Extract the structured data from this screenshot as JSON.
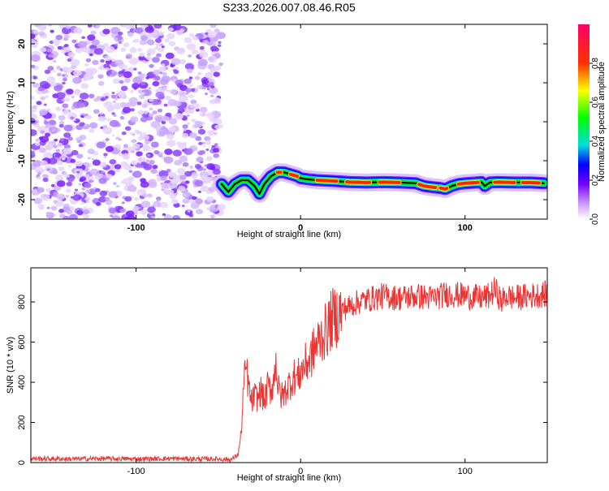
{
  "title": "S233.2026.007.08.46.R05",
  "chart_data": [
    {
      "type": "heatmap",
      "xlabel": "Height of straight line (km)",
      "ylabel": "Frequency (Hz)",
      "xlim": [
        -164,
        150
      ],
      "ylim": [
        -25,
        25
      ],
      "xticks": [
        -100,
        0,
        100
      ],
      "yticks": [
        -20,
        -10,
        0,
        10,
        20
      ],
      "noise_region_x": [
        -164,
        -48
      ],
      "ridge": {
        "x": [
          -48,
          -44,
          -40,
          -36,
          -32,
          -28,
          -25,
          -22,
          -18,
          -14,
          -10,
          -6,
          -2,
          0,
          5,
          10,
          20,
          30,
          40,
          50,
          60,
          70,
          75,
          80,
          85,
          88,
          92,
          96,
          100,
          110,
          112,
          115,
          120,
          130,
          140,
          148
        ],
        "frequency": [
          -16,
          -18,
          -16,
          -15,
          -15,
          -16.5,
          -18.5,
          -16,
          -14,
          -13,
          -13,
          -13.5,
          -14,
          -14.5,
          -14.8,
          -15,
          -15.2,
          -15.5,
          -15.6,
          -15.5,
          -15.6,
          -15.8,
          -16.5,
          -16.8,
          -17,
          -17.3,
          -16.5,
          -16,
          -15.8,
          -15.5,
          -16.5,
          -15.6,
          -15.5,
          -15.6,
          -15.6,
          -15.8
        ]
      },
      "colorbar": {
        "label": "Normalized spectral amplitude",
        "range": [
          0,
          1
        ],
        "ticks": [
          0.0,
          0.2,
          0.4,
          0.6,
          0.8
        ],
        "tick_labels": [
          "0.0",
          "0.2",
          "0.4",
          "0.6",
          "0.8"
        ],
        "colors": [
          "#ffffff",
          "#7700ff",
          "#0000ff",
          "#00dddd",
          "#00ff00",
          "#ffff00",
          "#ff0000",
          "#ff0066"
        ]
      },
      "noise_color": "#8833ff"
    },
    {
      "type": "line",
      "xlabel": "Height of straight line (km)",
      "ylabel": "SNR (10 * v/v)",
      "xlim": [
        -164,
        150
      ],
      "ylim": [
        0,
        970
      ],
      "xticks": [
        -100,
        0,
        100
      ],
      "yticks": [
        0,
        200,
        400,
        600,
        800
      ],
      "line_color": "#ee3333",
      "series": [
        {
          "x": [
            -164,
            -140,
            -120,
            -100,
            -80,
            -60,
            -50,
            -42,
            -38,
            -36,
            -35,
            -34,
            -33,
            -32,
            -30,
            -28,
            -26,
            -24,
            -22,
            -20,
            -18,
            -16,
            -15,
            -14,
            -12,
            -10,
            -8,
            -6,
            -4,
            -2,
            0,
            2,
            4,
            6,
            8,
            10,
            12,
            14,
            16,
            18,
            20,
            22,
            25,
            30,
            35,
            40,
            50,
            60,
            70,
            80,
            90,
            100,
            110,
            115,
            118,
            120,
            122,
            125,
            130,
            140,
            150
          ],
          "values": [
            20,
            18,
            20,
            18,
            20,
            18,
            18,
            15,
            40,
            150,
            330,
            420,
            480,
            400,
            300,
            330,
            320,
            360,
            300,
            380,
            360,
            420,
            540,
            380,
            330,
            340,
            380,
            400,
            430,
            420,
            450,
            480,
            500,
            520,
            560,
            590,
            620,
            640,
            660,
            700,
            720,
            730,
            760,
            780,
            800,
            810,
            830,
            820,
            830,
            820,
            840,
            830,
            820,
            830,
            860,
            840,
            800,
            830,
            820,
            830,
            840
          ]
        }
      ]
    }
  ]
}
